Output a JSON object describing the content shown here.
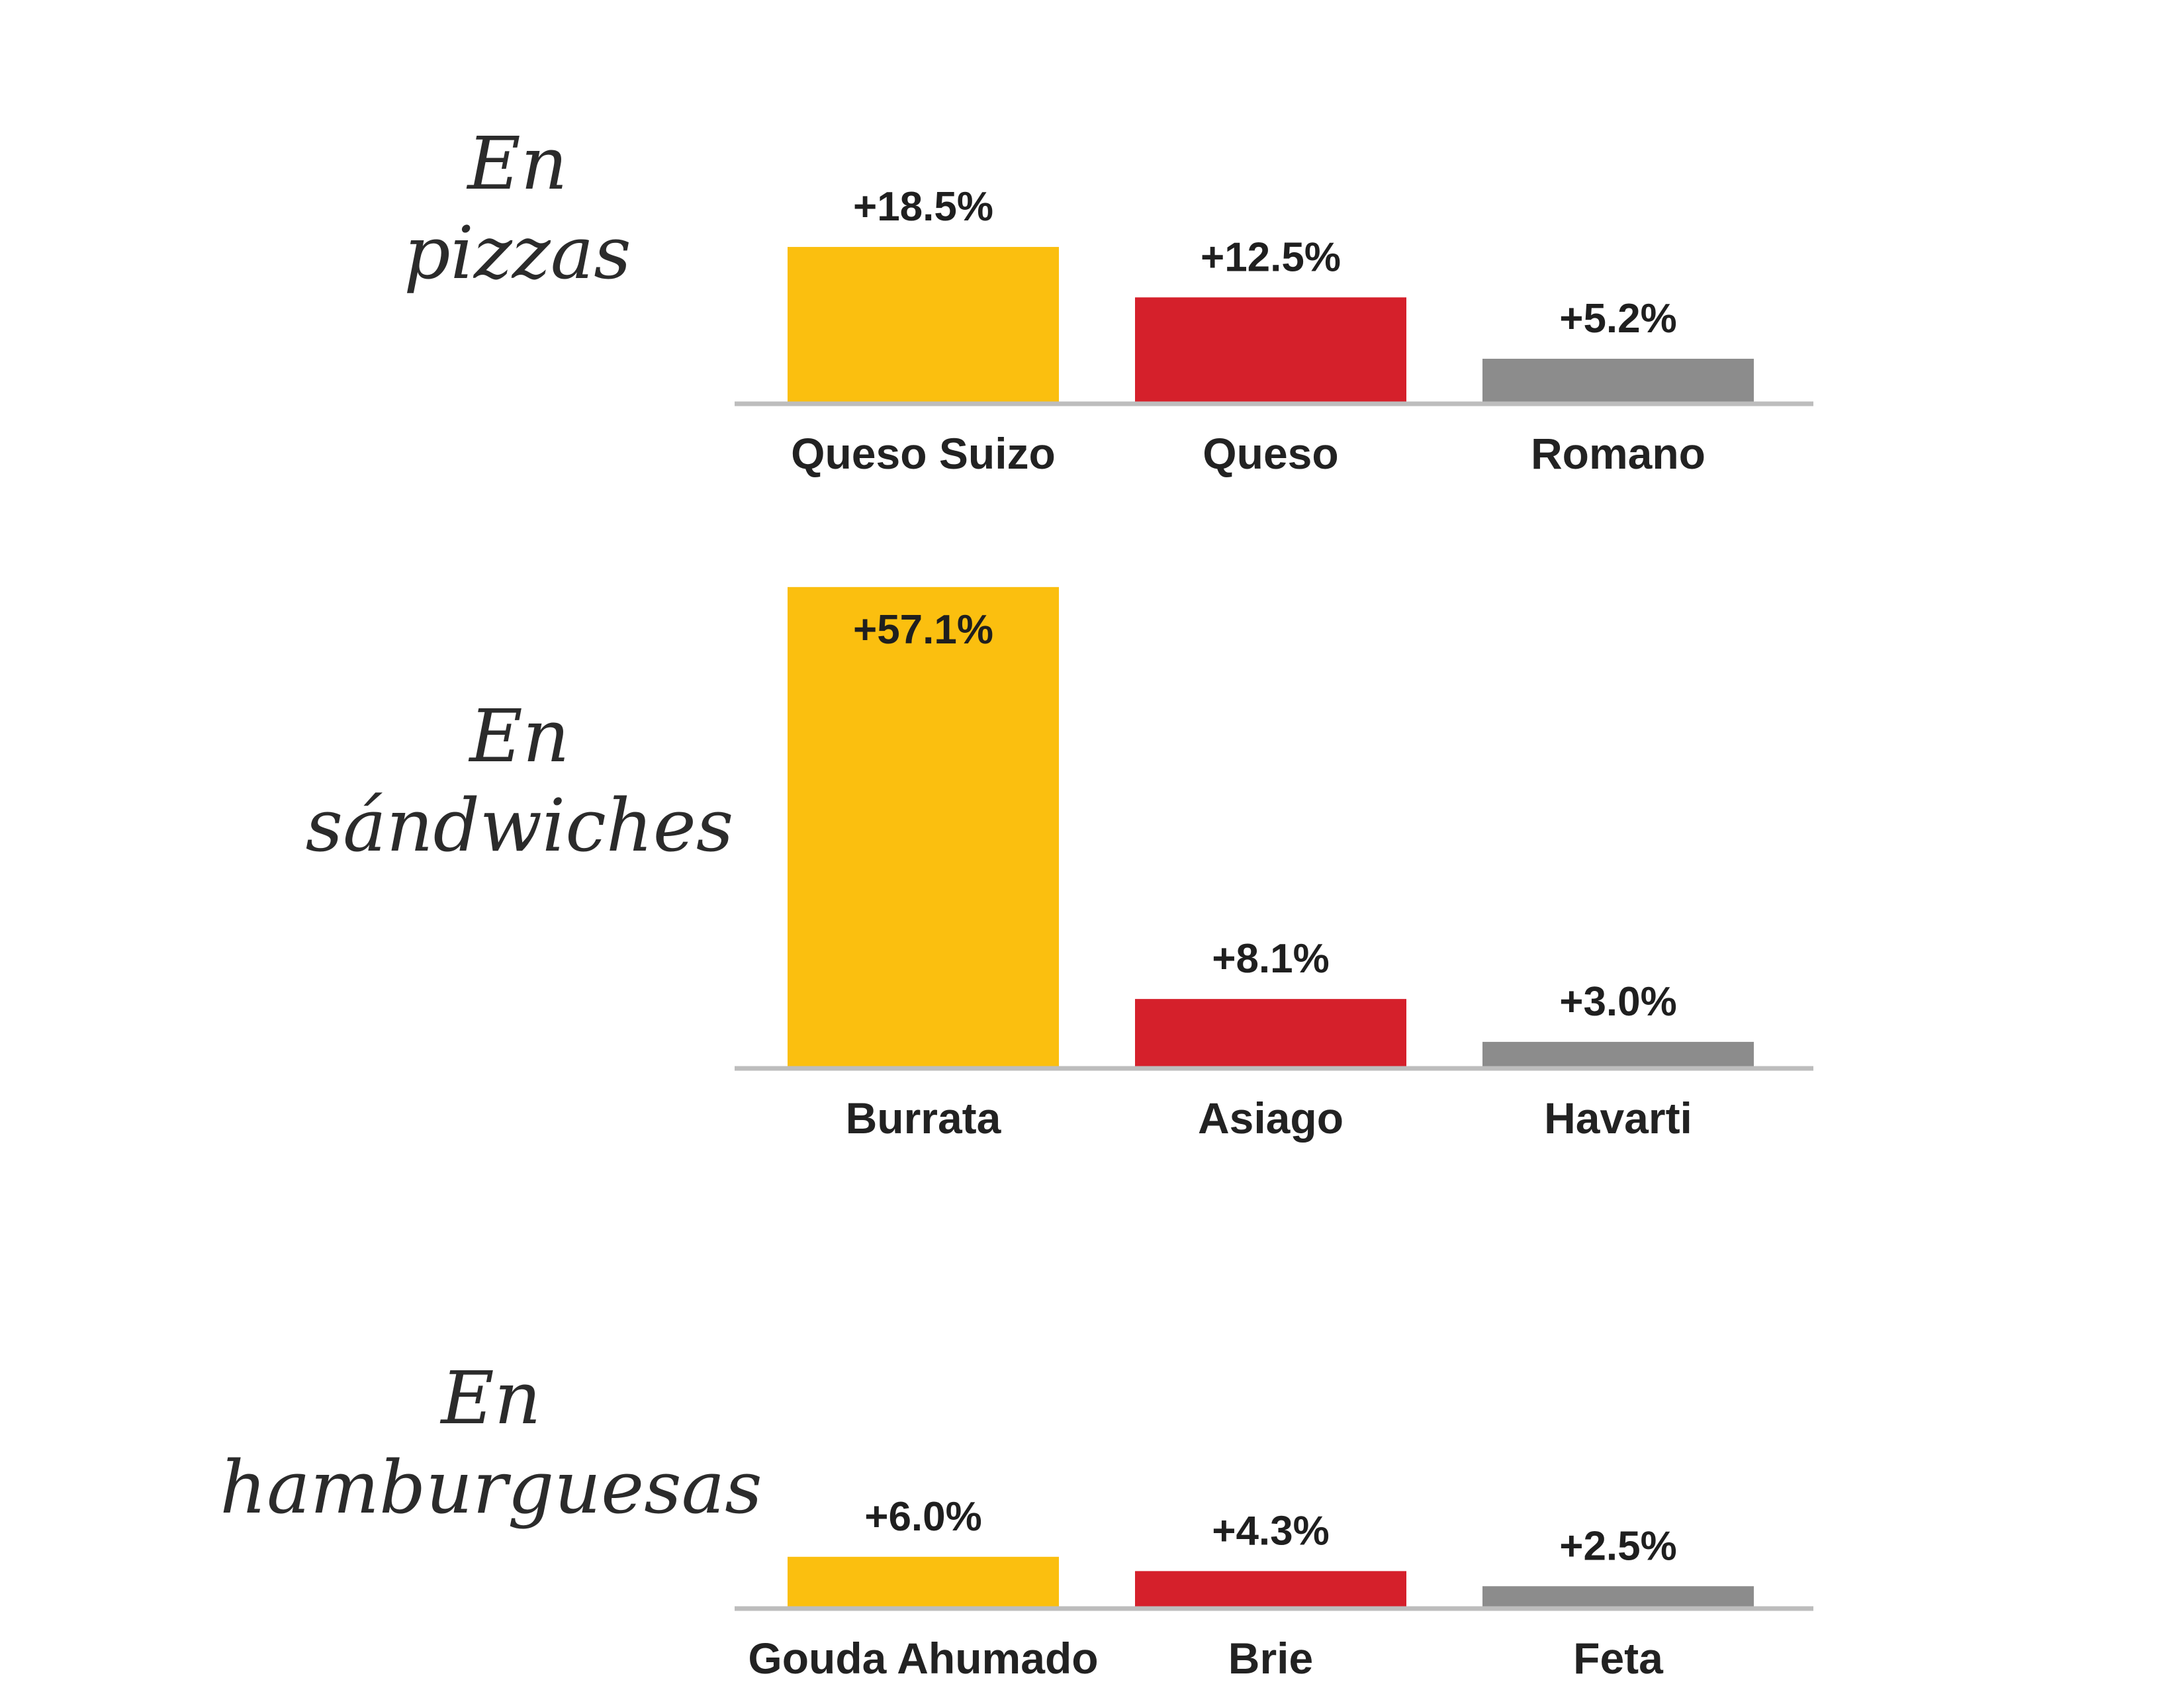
{
  "colors": {
    "background": "#ffffff",
    "baseline": "#bdbdbd",
    "series": [
      "#fbbf0f",
      "#d5202b",
      "#8c8c8c"
    ]
  },
  "chart_data": [
    {
      "type": "bar",
      "title_lines": [
        "En",
        "pizzas"
      ],
      "categories": [
        "Queso Suizo",
        "Queso",
        "Romano"
      ],
      "values": [
        18.5,
        12.5,
        5.2
      ],
      "value_labels": [
        "+18.5%",
        "+12.5%",
        "+5.2%"
      ],
      "ylim": [
        0,
        57.1
      ],
      "grid": false,
      "legend": "none"
    },
    {
      "type": "bar",
      "title_lines": [
        "En",
        "sándwiches"
      ],
      "categories": [
        "Burrata",
        "Asiago",
        "Havarti"
      ],
      "values": [
        57.1,
        8.1,
        3.0
      ],
      "value_labels": [
        "+57.1%",
        "+8.1%",
        "+3.0%"
      ],
      "ylim": [
        0,
        57.1
      ],
      "grid": false,
      "legend": "none"
    },
    {
      "type": "bar",
      "title_lines": [
        "En",
        "hamburguesas"
      ],
      "categories": [
        "Gouda Ahumado",
        "Brie",
        "Feta"
      ],
      "values": [
        6.0,
        4.3,
        2.5
      ],
      "value_labels": [
        "+6.0%",
        "+4.3%",
        "+2.5%"
      ],
      "ylim": [
        0,
        57.1
      ],
      "grid": false,
      "legend": "none"
    }
  ]
}
